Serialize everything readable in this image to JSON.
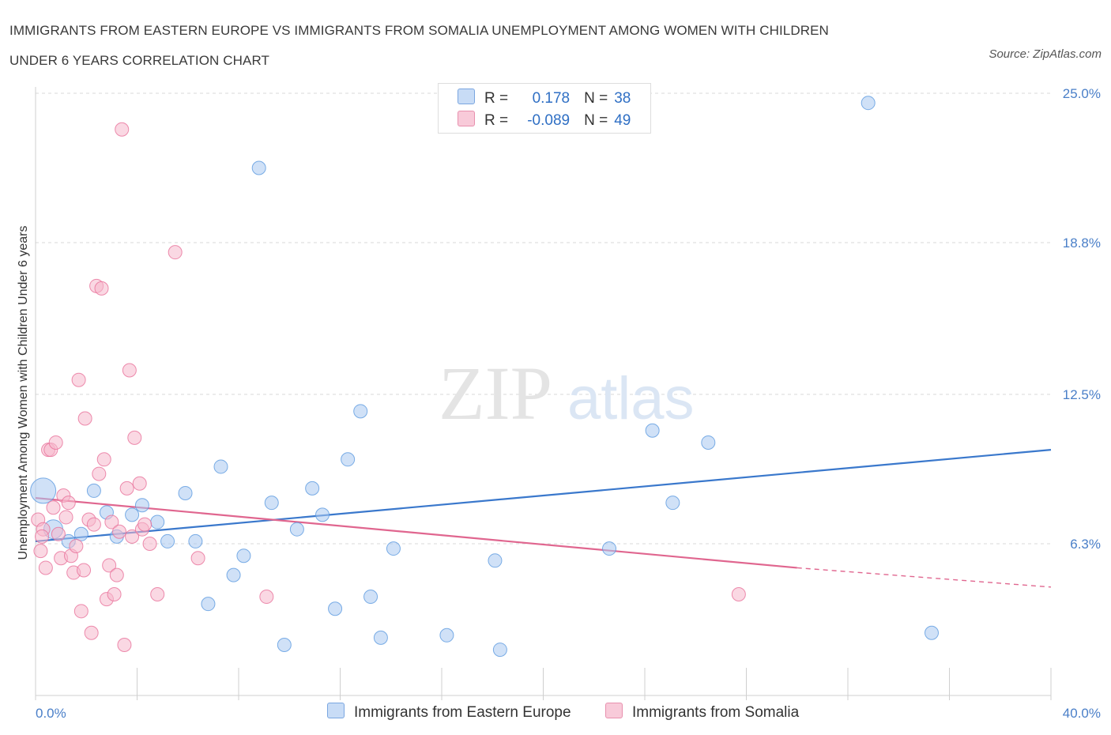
{
  "header": {
    "title_line1": "IMMIGRANTS FROM EASTERN EUROPE VS IMMIGRANTS FROM SOMALIA UNEMPLOYMENT AMONG WOMEN WITH CHILDREN",
    "title_line2": "UNDER 6 YEARS CORRELATION CHART",
    "source": "Source: ZipAtlas.com"
  },
  "watermark": {
    "zip": "ZIP",
    "atlas": "atlas"
  },
  "legend": {
    "rows": [
      {
        "r_label": "R =",
        "r_value": "0.178",
        "n_label": "N =",
        "n_value": "38",
        "color": "#aac8f0"
      },
      {
        "r_label": "R =",
        "r_value": "-0.089",
        "n_label": "N =",
        "n_value": "49",
        "color": "#f5b8cc"
      }
    ]
  },
  "chart_data": {
    "type": "scatter",
    "title": "IMMIGRANTS FROM EASTERN EUROPE VS IMMIGRANTS FROM SOMALIA UNEMPLOYMENT AMONG WOMEN WITH CHILDREN UNDER 6 YEARS CORRELATION CHART",
    "ylabel": "Unemployment Among Women with Children Under 6 years",
    "xlabel": "",
    "xlim": [
      0,
      40
    ],
    "ylim": [
      0,
      25
    ],
    "x_tick_labels": [
      "0.0%",
      "40.0%"
    ],
    "y_ticks": [
      6.3,
      12.5,
      18.8,
      25.0
    ],
    "y_tick_labels": [
      "6.3%",
      "12.5%",
      "18.8%",
      "25.0%"
    ],
    "grid": true,
    "legend_position": "bottom-center",
    "series": [
      {
        "name": "Immigrants from Eastern Europe",
        "color": "#5b9ae0",
        "fill": "#aac8f0",
        "trend": {
          "x": [
            0,
            40
          ],
          "y": [
            6.4,
            10.2
          ]
        },
        "points": [
          {
            "x": 0.3,
            "y": 8.5,
            "s": 16
          },
          {
            "x": 0.7,
            "y": 6.9,
            "s": 12
          },
          {
            "x": 1.3,
            "y": 6.4
          },
          {
            "x": 1.8,
            "y": 6.7
          },
          {
            "x": 2.3,
            "y": 8.5
          },
          {
            "x": 2.8,
            "y": 7.6
          },
          {
            "x": 3.2,
            "y": 6.6
          },
          {
            "x": 3.8,
            "y": 7.5
          },
          {
            "x": 4.2,
            "y": 7.9
          },
          {
            "x": 4.8,
            "y": 7.2
          },
          {
            "x": 5.2,
            "y": 6.4
          },
          {
            "x": 5.9,
            "y": 8.4
          },
          {
            "x": 6.3,
            "y": 6.4
          },
          {
            "x": 6.8,
            "y": 3.8
          },
          {
            "x": 7.3,
            "y": 9.5
          },
          {
            "x": 7.8,
            "y": 5.0
          },
          {
            "x": 8.2,
            "y": 5.8
          },
          {
            "x": 8.8,
            "y": 21.9
          },
          {
            "x": 9.3,
            "y": 8.0
          },
          {
            "x": 9.8,
            "y": 2.1
          },
          {
            "x": 10.3,
            "y": 6.9
          },
          {
            "x": 10.9,
            "y": 8.6
          },
          {
            "x": 11.3,
            "y": 7.5
          },
          {
            "x": 11.8,
            "y": 3.6
          },
          {
            "x": 12.3,
            "y": 9.8
          },
          {
            "x": 12.8,
            "y": 11.8
          },
          {
            "x": 13.2,
            "y": 4.1
          },
          {
            "x": 13.6,
            "y": 2.4
          },
          {
            "x": 14.1,
            "y": 6.1
          },
          {
            "x": 16.2,
            "y": 2.5
          },
          {
            "x": 18.1,
            "y": 5.6
          },
          {
            "x": 18.3,
            "y": 1.9
          },
          {
            "x": 22.6,
            "y": 6.1
          },
          {
            "x": 24.3,
            "y": 11.0
          },
          {
            "x": 25.1,
            "y": 8.0
          },
          {
            "x": 26.5,
            "y": 10.5
          },
          {
            "x": 32.8,
            "y": 24.6
          },
          {
            "x": 35.3,
            "y": 2.6
          }
        ]
      },
      {
        "name": "Immigrants from Somalia",
        "color": "#e8709a",
        "fill": "#f5b8cc",
        "trend": {
          "x": [
            0,
            30
          ],
          "y": [
            8.2,
            5.3
          ]
        },
        "trend_dashed": {
          "x": [
            30,
            40
          ],
          "y": [
            5.3,
            4.5
          ]
        },
        "points": [
          {
            "x": 0.1,
            "y": 7.3
          },
          {
            "x": 0.2,
            "y": 6.0
          },
          {
            "x": 0.3,
            "y": 6.9
          },
          {
            "x": 0.4,
            "y": 5.3
          },
          {
            "x": 0.5,
            "y": 10.2
          },
          {
            "x": 0.6,
            "y": 10.2
          },
          {
            "x": 0.7,
            "y": 7.8
          },
          {
            "x": 0.8,
            "y": 10.5
          },
          {
            "x": 0.9,
            "y": 6.7
          },
          {
            "x": 1.0,
            "y": 5.7
          },
          {
            "x": 1.1,
            "y": 8.3
          },
          {
            "x": 1.2,
            "y": 7.4
          },
          {
            "x": 1.3,
            "y": 8.0
          },
          {
            "x": 1.4,
            "y": 5.8
          },
          {
            "x": 1.5,
            "y": 5.1
          },
          {
            "x": 1.6,
            "y": 6.2
          },
          {
            "x": 1.7,
            "y": 13.1
          },
          {
            "x": 1.8,
            "y": 3.5
          },
          {
            "x": 1.9,
            "y": 5.2
          },
          {
            "x": 1.95,
            "y": 11.5
          },
          {
            "x": 2.1,
            "y": 7.3
          },
          {
            "x": 2.2,
            "y": 2.6
          },
          {
            "x": 2.3,
            "y": 7.1
          },
          {
            "x": 2.4,
            "y": 17.0
          },
          {
            "x": 2.5,
            "y": 9.2
          },
          {
            "x": 2.6,
            "y": 16.9
          },
          {
            "x": 2.7,
            "y": 9.8
          },
          {
            "x": 2.8,
            "y": 4.0
          },
          {
            "x": 2.9,
            "y": 5.4
          },
          {
            "x": 3.0,
            "y": 7.2
          },
          {
            "x": 3.1,
            "y": 4.2
          },
          {
            "x": 3.2,
            "y": 5.0
          },
          {
            "x": 3.3,
            "y": 6.8
          },
          {
            "x": 3.4,
            "y": 23.5
          },
          {
            "x": 3.5,
            "y": 2.1
          },
          {
            "x": 3.6,
            "y": 8.6
          },
          {
            "x": 3.7,
            "y": 13.5
          },
          {
            "x": 3.8,
            "y": 6.6
          },
          {
            "x": 3.9,
            "y": 10.7
          },
          {
            "x": 4.1,
            "y": 8.8
          },
          {
            "x": 4.2,
            "y": 6.9
          },
          {
            "x": 4.3,
            "y": 7.1
          },
          {
            "x": 4.5,
            "y": 6.3
          },
          {
            "x": 4.8,
            "y": 4.2
          },
          {
            "x": 5.5,
            "y": 18.4
          },
          {
            "x": 6.4,
            "y": 5.7
          },
          {
            "x": 9.1,
            "y": 4.1
          },
          {
            "x": 27.7,
            "y": 4.2
          },
          {
            "x": 0.25,
            "y": 6.6
          }
        ]
      }
    ]
  },
  "bottom_legend": {
    "items": [
      {
        "label": "Immigrants from Eastern Europe",
        "color": "#aac8f0"
      },
      {
        "label": "Immigrants from Somalia",
        "color": "#f5b8cc"
      }
    ]
  }
}
